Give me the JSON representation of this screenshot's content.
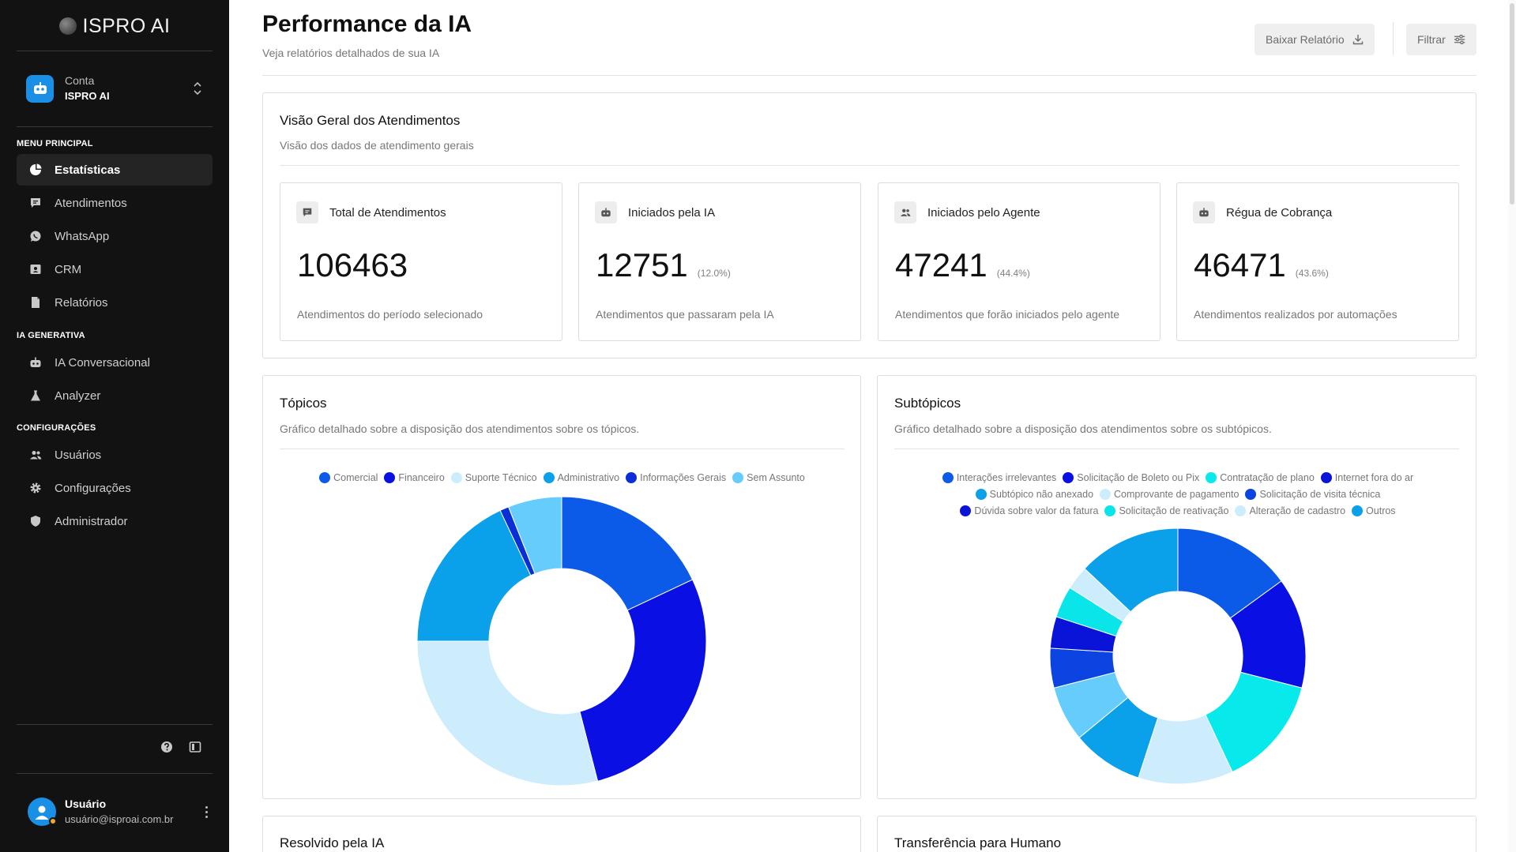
{
  "app": {
    "logo_text": "ISPRO AI"
  },
  "account": {
    "label": "Conta",
    "name": "ISPRO AI"
  },
  "sidebar": {
    "sections": [
      {
        "title": "MENU PRINCIPAL",
        "items": [
          {
            "label": "Estatísticas",
            "icon": "pie-chart-icon",
            "active": true
          },
          {
            "label": "Atendimentos",
            "icon": "chat-icon"
          },
          {
            "label": "WhatsApp",
            "icon": "whatsapp-icon"
          },
          {
            "label": "CRM",
            "icon": "contact-card-icon"
          },
          {
            "label": "Relatórios",
            "icon": "document-icon"
          }
        ]
      },
      {
        "title": "IA GENERATIVA",
        "items": [
          {
            "label": "IA Conversacional",
            "icon": "robot-icon"
          },
          {
            "label": "Analyzer",
            "icon": "flask-icon"
          }
        ]
      },
      {
        "title": "CONFIGURAÇÕES",
        "items": [
          {
            "label": "Usuários",
            "icon": "users-icon"
          },
          {
            "label": "Configurações",
            "icon": "gear-icon"
          },
          {
            "label": "Administrador",
            "icon": "shield-icon"
          }
        ]
      }
    ]
  },
  "user": {
    "name": "Usuário",
    "email": "usuário@isproai.com.br"
  },
  "header": {
    "title": "Performance da IA",
    "subtitle": "Veja relatórios detalhados de sua IA",
    "download_label": "Baixar Relatório",
    "filter_label": "Filtrar"
  },
  "overview": {
    "title": "Visão Geral dos Atendimentos",
    "subtitle": "Visão dos dados de atendimento gerais",
    "stats": [
      {
        "label": "Total de Atendimentos",
        "value": "106463",
        "pct": "",
        "desc": "Atendimentos do período selecionado",
        "icon": "chat-icon"
      },
      {
        "label": "Iniciados pela IA",
        "value": "12751",
        "pct": "(12.0%)",
        "desc": "Atendimentos que passaram pela IA",
        "icon": "robot-icon"
      },
      {
        "label": "Iniciados pelo Agente",
        "value": "47241",
        "pct": "(44.4%)",
        "desc": "Atendimentos que forão iniciados pelo agente",
        "icon": "users-icon"
      },
      {
        "label": "Régua de Cobrança",
        "value": "46471",
        "pct": "(43.6%)",
        "desc": "Atendimentos realizados por automações",
        "icon": "robot-icon"
      }
    ]
  },
  "topics": {
    "title": "Tópicos",
    "subtitle": "Gráfico detalhado sobre a disposição dos atendimentos sobre os tópicos."
  },
  "subtopics": {
    "title": "Subtópicos",
    "subtitle": "Gráfico detalhado sobre a disposição dos atendimentos sobre os subtópicos."
  },
  "bottom_cards": {
    "left_title": "Resolvido pela IA",
    "right_title": "Transferência para Humano"
  },
  "chart_data": [
    {
      "type": "pie",
      "chart": "topics",
      "categories": [
        "Comercial",
        "Financeiro",
        "Suporte Técnico",
        "Administrativo",
        "Informações Gerais",
        "Sem Assunto"
      ],
      "values": [
        18,
        28,
        29,
        18,
        1,
        6
      ],
      "colors": [
        "#0b5be8",
        "#0a10e3",
        "#cdedfc",
        "#0aa0ea",
        "#0b2fd6",
        "#66ccfb"
      ],
      "legend": "top"
    },
    {
      "type": "pie",
      "chart": "subtopics",
      "categories": [
        "Interações irrelevantes",
        "Solicitação de Boleto ou Pix",
        "Contratação de plano",
        "Internet fora do ar",
        "Subtópico não anexado",
        "Comprovante de pagamento",
        "Solicitação de visita técnica",
        "Dúvida sobre valor da fatura",
        "Solicitação de reativação",
        "Alteração de cadastro",
        "Outros"
      ],
      "values": [
        15,
        14,
        14,
        12,
        9,
        7,
        5,
        4,
        4,
        3,
        13
      ],
      "colors": [
        "#0b5be8",
        "#0a10e3",
        "#08e9ec",
        "#cdedfc",
        "#0aa0ea",
        "#66ccfb",
        "#0b44e0",
        "#0a14d9",
        "#0ae5ea",
        "#cdedfc",
        "#0aa0ea"
      ],
      "legend_colors": [
        "#0b5be8",
        "#0a10e3",
        "#08e9ec",
        "#0a14d9",
        "#0aa0ea",
        "#cdedfc",
        "#0b44e0",
        "#0a14d9",
        "#0ae5ea",
        "#cdedfc",
        "#0aa0ea"
      ],
      "legend": "top"
    }
  ]
}
